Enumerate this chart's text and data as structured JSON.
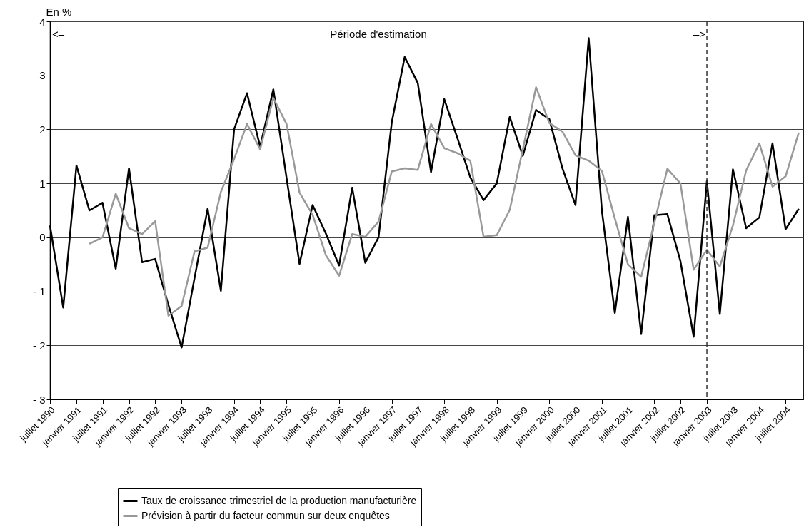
{
  "chart_data": {
    "type": "line",
    "ylabel": "En %",
    "x": [
      "1990-07",
      "1990-10",
      "1991-01",
      "1991-04",
      "1991-07",
      "1991-10",
      "1992-01",
      "1992-04",
      "1992-07",
      "1992-10",
      "1993-01",
      "1993-04",
      "1993-07",
      "1993-10",
      "1994-01",
      "1994-04",
      "1994-07",
      "1994-10",
      "1995-01",
      "1995-04",
      "1995-07",
      "1995-10",
      "1996-01",
      "1996-04",
      "1996-07",
      "1996-10",
      "1997-01",
      "1997-04",
      "1997-07",
      "1997-10",
      "1998-01",
      "1998-04",
      "1998-07",
      "1998-10",
      "1999-01",
      "1999-04",
      "1999-07",
      "1999-10",
      "2000-01",
      "2000-04",
      "2000-07",
      "2000-10",
      "2001-01",
      "2001-04",
      "2001-07",
      "2001-10",
      "2002-01",
      "2002-04",
      "2002-07",
      "2002-10",
      "2003-01",
      "2003-04",
      "2003-07",
      "2003-10",
      "2004-01",
      "2004-04",
      "2004-07",
      "2004-10"
    ],
    "series": [
      {
        "name": "Taux de croissance trimestriel de la production manufacturière",
        "color": "#000000",
        "values": [
          0.22,
          -1.3,
          1.33,
          0.5,
          0.64,
          -0.58,
          1.28,
          -0.46,
          -0.4,
          -1.25,
          -2.04,
          -0.75,
          0.53,
          -0.99,
          2.0,
          2.67,
          1.68,
          2.74,
          1.1,
          -0.49,
          0.6,
          0.07,
          -0.52,
          0.92,
          -0.47,
          0.0,
          2.13,
          3.34,
          2.86,
          1.21,
          2.56,
          1.85,
          1.11,
          0.69,
          1.0,
          2.23,
          1.51,
          2.36,
          2.19,
          1.28,
          0.6,
          3.69,
          0.49,
          -1.4,
          0.38,
          -1.79,
          0.41,
          0.43,
          -0.44,
          -1.84,
          1.04,
          -1.42,
          1.26,
          0.17,
          0.37,
          1.74,
          0.15,
          0.53
        ]
      },
      {
        "name": "Prévision à partir du facteur commun sur deux enquêtes",
        "color": "#999999",
        "values": [
          null,
          null,
          null,
          -0.12,
          0.0,
          0.81,
          0.17,
          0.06,
          0.3,
          -1.45,
          -1.27,
          -0.26,
          -0.19,
          0.84,
          1.45,
          2.1,
          1.63,
          2.58,
          2.1,
          0.83,
          0.42,
          -0.33,
          -0.71,
          0.06,
          0.01,
          0.29,
          1.22,
          1.28,
          1.25,
          2.1,
          1.65,
          1.56,
          1.42,
          0.01,
          0.04,
          0.51,
          1.63,
          2.78,
          2.12,
          1.96,
          1.52,
          1.42,
          1.23,
          0.35,
          -0.5,
          -0.73,
          0.27,
          1.27,
          1.0,
          -0.6,
          -0.23,
          -0.54,
          0.22,
          1.24,
          1.74,
          0.94,
          1.13,
          1.94
        ]
      }
    ],
    "xlim": [
      "1990-07",
      "2004-11"
    ],
    "xticks": [
      {
        "value": "1990-07",
        "label": "juillet 1990"
      },
      {
        "value": "1991-01",
        "label": "janvier 1991"
      },
      {
        "value": "1991-07",
        "label": "juillet 1991"
      },
      {
        "value": "1992-01",
        "label": "janvier 1992"
      },
      {
        "value": "1992-07",
        "label": "juillet 1992"
      },
      {
        "value": "1993-01",
        "label": "janvier 1993"
      },
      {
        "value": "1993-07",
        "label": "juillet 1993"
      },
      {
        "value": "1994-01",
        "label": "janvier 1994"
      },
      {
        "value": "1994-07",
        "label": "juillet 1994"
      },
      {
        "value": "1995-01",
        "label": "janvier 1995"
      },
      {
        "value": "1995-07",
        "label": "juillet 1995"
      },
      {
        "value": "1996-01",
        "label": "janvier 1996"
      },
      {
        "value": "1996-07",
        "label": "juillet 1996"
      },
      {
        "value": "1997-01",
        "label": "janvier 1997"
      },
      {
        "value": "1997-07",
        "label": "juillet 1997"
      },
      {
        "value": "1998-01",
        "label": "janvier 1998"
      },
      {
        "value": "1998-07",
        "label": "juillet 1998"
      },
      {
        "value": "1999-01",
        "label": "janvier 1999"
      },
      {
        "value": "1999-07",
        "label": "juillet 1999"
      },
      {
        "value": "2000-01",
        "label": "janvier 2000"
      },
      {
        "value": "2000-07",
        "label": "juillet 2000"
      },
      {
        "value": "2001-01",
        "label": "janvier 2001"
      },
      {
        "value": "2001-07",
        "label": "juillet 2001"
      },
      {
        "value": "2002-01",
        "label": "janvier 2002"
      },
      {
        "value": "2002-07",
        "label": "juillet 2002"
      },
      {
        "value": "2003-01",
        "label": "janvier 2003"
      },
      {
        "value": "2003-07",
        "label": "juillet 2003"
      },
      {
        "value": "2004-01",
        "label": "janvier 2004"
      },
      {
        "value": "2004-07",
        "label": "juillet 2004"
      }
    ],
    "ylim": [
      -3,
      4
    ],
    "yticks": [
      {
        "value": -3,
        "label": "- 3"
      },
      {
        "value": -2,
        "label": "- 2"
      },
      {
        "value": -1,
        "label": "- 1"
      },
      0,
      1,
      2,
      3,
      4
    ],
    "grid": "y",
    "legend": "bottom",
    "line_style": "solid",
    "marker": "none",
    "ref_lines": [
      {
        "axis": "x",
        "value": "2003-01",
        "color": "#333333",
        "line_style": "dashed"
      }
    ],
    "annotations": [
      "<–",
      "Période d'estimation",
      "–>"
    ]
  }
}
